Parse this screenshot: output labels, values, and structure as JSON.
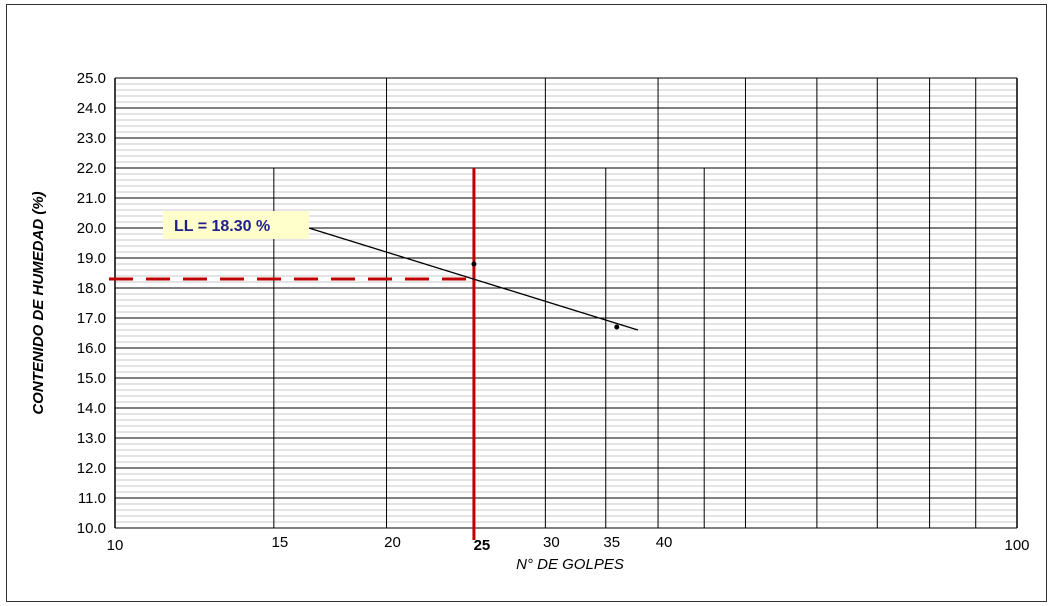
{
  "chart_data": {
    "type": "scatter",
    "xscale": "log",
    "xlim": [
      10,
      100
    ],
    "ylim": [
      10.0,
      25.0
    ],
    "ylabel": "CONTENIDO DE HUMEDAD (%)",
    "xlabel": "N° DE GOLPES",
    "x_tick_labels": [
      "10",
      "15",
      "20",
      "25",
      "30",
      "35",
      "40",
      "100"
    ],
    "y_tick_labels": [
      "10.0",
      "11.0",
      "12.0",
      "13.0",
      "14.0",
      "15.0",
      "16.0",
      "17.0",
      "18.0",
      "19.0",
      "20.0",
      "21.0",
      "22.0",
      "23.0",
      "24.0",
      "25.0"
    ],
    "points": [
      {
        "x": 25,
        "y": 18.8
      },
      {
        "x": 36,
        "y": 16.7
      }
    ],
    "trendline": {
      "x": [
        16,
        38
      ],
      "y": [
        20.1,
        16.6
      ]
    },
    "reference_lines": {
      "vertical_x": 25,
      "horizontal_y": 18.3
    },
    "annotation": "LL = 18.30 %",
    "grid": true,
    "colors": {
      "reference": "#c00000",
      "trend": "#000000",
      "annotation_bg": "#ffffcc",
      "annotation_text": "#1f1f8c"
    }
  }
}
